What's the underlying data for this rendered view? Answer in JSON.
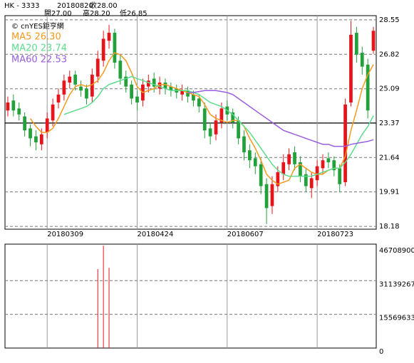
{
  "chart_data": {
    "type": "candlestick",
    "symbol": "HK - 3333",
    "date": "20180820",
    "close_label": "收28.00",
    "open_label": "開27.00",
    "high_label": "高28.20",
    "low_label": "低26.85",
    "source": "© cnYES鉅亨網",
    "categories": [
      null,
      null,
      null,
      null,
      null,
      null,
      null,
      "20180309",
      null,
      null,
      null,
      null,
      null,
      null,
      null,
      null,
      null,
      null,
      null,
      null,
      null,
      null,
      null,
      "20180424",
      null,
      null,
      null,
      null,
      null,
      null,
      null,
      null,
      null,
      null,
      null,
      null,
      null,
      null,
      null,
      "20180607",
      null,
      null,
      null,
      null,
      null,
      null,
      null,
      null,
      null,
      null,
      null,
      null,
      null,
      null,
      null,
      "20180723",
      null,
      null,
      null,
      null,
      null,
      null,
      null,
      null,
      null,
      null
    ],
    "open": [
      24.0,
      24.5,
      24.1,
      23.7,
      23.1,
      22.7,
      22.3,
      22.9,
      23.5,
      24.4,
      24.8,
      25.4,
      25.8,
      25.2,
      25.1,
      24.7,
      25.7,
      26.5,
      27.5,
      27.9,
      26.5,
      25.7,
      25.3,
      24.7,
      24.5,
      25.2,
      25.6,
      25.1,
      25.4,
      25.2,
      25.1,
      24.8,
      25.0,
      24.8,
      24.6,
      24.1,
      23.1,
      22.8,
      23.4,
      24.2,
      23.9,
      23.5,
      22.7,
      22.0,
      21.6,
      21.3,
      20.3,
      19.2,
      20.2,
      20.8,
      21.3,
      21.9,
      21.4,
      20.8,
      20.1,
      20.5,
      21.1,
      21.6,
      21.5,
      21.1,
      20.4,
      24.4,
      27.9,
      26.9,
      26.3,
      27.0
    ],
    "high": [
      24.7,
      24.8,
      24.4,
      23.9,
      23.3,
      23.0,
      23.1,
      23.9,
      24.6,
      25.1,
      25.8,
      26.0,
      26.0,
      25.5,
      25.3,
      26.1,
      27.0,
      28.0,
      28.3,
      28.1,
      26.8,
      26.0,
      25.5,
      25.0,
      25.6,
      25.8,
      25.9,
      25.7,
      25.6,
      25.4,
      25.3,
      25.3,
      25.2,
      25.0,
      24.8,
      24.4,
      23.4,
      23.8,
      24.4,
      24.5,
      24.1,
      23.7,
      23.0,
      22.3,
      21.9,
      21.6,
      20.6,
      20.7,
      21.2,
      21.8,
      22.1,
      22.2,
      21.7,
      21.1,
      20.9,
      21.5,
      21.8,
      21.9,
      21.7,
      21.3,
      24.6,
      28.5,
      28.2,
      27.2,
      26.6,
      28.2
    ],
    "low": [
      23.7,
      23.7,
      23.5,
      22.7,
      22.2,
      22.0,
      22.0,
      22.6,
      23.2,
      24.1,
      24.5,
      25.1,
      25.0,
      24.7,
      24.3,
      24.4,
      25.4,
      26.2,
      27.1,
      26.1,
      25.3,
      24.9,
      24.3,
      24.0,
      24.2,
      24.9,
      24.9,
      24.8,
      24.8,
      24.7,
      24.6,
      24.5,
      24.4,
      24.2,
      23.9,
      22.6,
      22.3,
      22.5,
      23.1,
      23.5,
      23.1,
      22.3,
      21.5,
      21.1,
      20.8,
      19.8,
      18.3,
      18.8,
      19.9,
      20.5,
      21.0,
      21.0,
      20.4,
      19.9,
      19.6,
      20.2,
      20.8,
      21.1,
      20.7,
      19.9,
      20.2,
      24.2,
      26.4,
      25.8,
      23.6,
      26.85
    ],
    "close": [
      24.4,
      24.0,
      23.8,
      23.0,
      22.6,
      22.4,
      22.8,
      23.6,
      24.3,
      24.8,
      25.5,
      25.7,
      25.3,
      25.0,
      24.6,
      25.8,
      26.6,
      27.6,
      27.9,
      26.4,
      25.6,
      25.2,
      24.6,
      24.4,
      25.3,
      25.5,
      25.2,
      25.4,
      25.1,
      25.0,
      24.9,
      25.0,
      24.7,
      24.5,
      24.2,
      23.0,
      22.7,
      23.5,
      24.1,
      23.8,
      23.4,
      22.6,
      21.9,
      21.5,
      21.2,
      20.2,
      19.1,
      20.3,
      20.9,
      21.4,
      21.8,
      21.3,
      20.7,
      20.2,
      20.6,
      21.2,
      21.5,
      21.4,
      21.0,
      20.3,
      24.3,
      27.8,
      26.8,
      26.2,
      24.0,
      28.0
    ],
    "up_color": "#e8141b",
    "down_color": "#22a03a",
    "series": [
      {
        "name": "MA5 26.30",
        "color": "#f59a1e",
        "values": [
          null,
          null,
          null,
          null,
          23.6,
          23.2,
          22.9,
          22.9,
          23.1,
          23.6,
          24.2,
          24.8,
          25.2,
          25.3,
          25.2,
          25.3,
          25.5,
          25.9,
          26.5,
          26.9,
          26.8,
          26.5,
          25.9,
          25.2,
          24.9,
          25.0,
          25.1,
          25.3,
          25.3,
          25.2,
          25.1,
          25.0,
          24.9,
          24.8,
          24.7,
          24.3,
          23.8,
          23.6,
          23.5,
          23.4,
          23.5,
          23.5,
          23.2,
          22.6,
          22.1,
          21.5,
          20.8,
          20.5,
          20.3,
          20.4,
          20.5,
          21.1,
          21.3,
          21.1,
          20.9,
          20.8,
          20.8,
          21.0,
          21.1,
          21.1,
          21.7,
          23.0,
          24.0,
          25.1,
          25.8,
          26.3
        ]
      },
      {
        "name": "MA20 23.74",
        "color": "#5ddc8e",
        "values": [
          null,
          null,
          null,
          null,
          null,
          null,
          null,
          null,
          null,
          null,
          23.8,
          23.9,
          24.0,
          24.1,
          24.2,
          24.4,
          24.7,
          25.1,
          25.3,
          25.4,
          25.5,
          25.6,
          25.7,
          25.6,
          25.5,
          25.4,
          25.3,
          25.2,
          25.1,
          25.0,
          25.0,
          25.0,
          25.0,
          24.9,
          24.8,
          24.6,
          24.4,
          24.3,
          24.2,
          24.0,
          23.8,
          23.5,
          23.2,
          22.9,
          22.5,
          22.1,
          21.7,
          21.3,
          21.0,
          20.8,
          20.7,
          20.7,
          20.7,
          20.7,
          20.7,
          20.8,
          20.9,
          21.0,
          21.1,
          21.1,
          21.4,
          21.8,
          22.3,
          22.8,
          23.2,
          23.74
        ]
      },
      {
        "name": "MA60 22.53",
        "color": "#9a5ee0",
        "values": [
          null,
          null,
          null,
          null,
          null,
          null,
          null,
          null,
          null,
          null,
          null,
          null,
          null,
          null,
          null,
          null,
          null,
          null,
          null,
          null,
          null,
          null,
          null,
          null,
          null,
          null,
          null,
          null,
          null,
          null,
          null,
          null,
          24.9,
          24.9,
          24.95,
          25.0,
          25.0,
          25.0,
          24.95,
          24.9,
          24.8,
          24.6,
          24.4,
          24.2,
          24.0,
          23.8,
          23.6,
          23.4,
          23.2,
          23.0,
          22.9,
          22.8,
          22.7,
          22.6,
          22.5,
          22.4,
          22.3,
          22.3,
          22.2,
          22.2,
          22.2,
          22.3,
          22.35,
          22.4,
          22.45,
          22.53
        ]
      }
    ],
    "ylim": [
      18.04,
      28.76
    ],
    "yticks": [
      28.55,
      26.82,
      25.09,
      23.37,
      21.64,
      19.91,
      18.18
    ],
    "reference_line": 23.37,
    "grid": true,
    "volume": {
      "color": "#e8141b",
      "values": [
        0,
        0,
        0,
        0,
        0,
        0,
        0,
        0,
        0,
        0,
        0,
        0,
        0,
        0,
        0,
        0,
        36500000,
        47300000,
        37100000,
        0,
        0,
        0,
        0,
        0,
        0,
        0,
        0,
        0,
        0,
        0,
        0,
        0,
        0,
        0,
        0,
        0,
        0,
        0,
        0,
        0,
        0,
        0,
        0,
        0,
        0,
        0,
        0,
        0,
        0,
        0,
        0,
        0,
        0,
        0,
        0,
        0,
        0,
        0,
        0,
        0,
        0,
        0,
        0,
        0,
        0,
        0
      ],
      "ylim": [
        0,
        48000000
      ],
      "yticks": [
        46708900,
        31139267,
        15569633,
        0
      ]
    }
  }
}
